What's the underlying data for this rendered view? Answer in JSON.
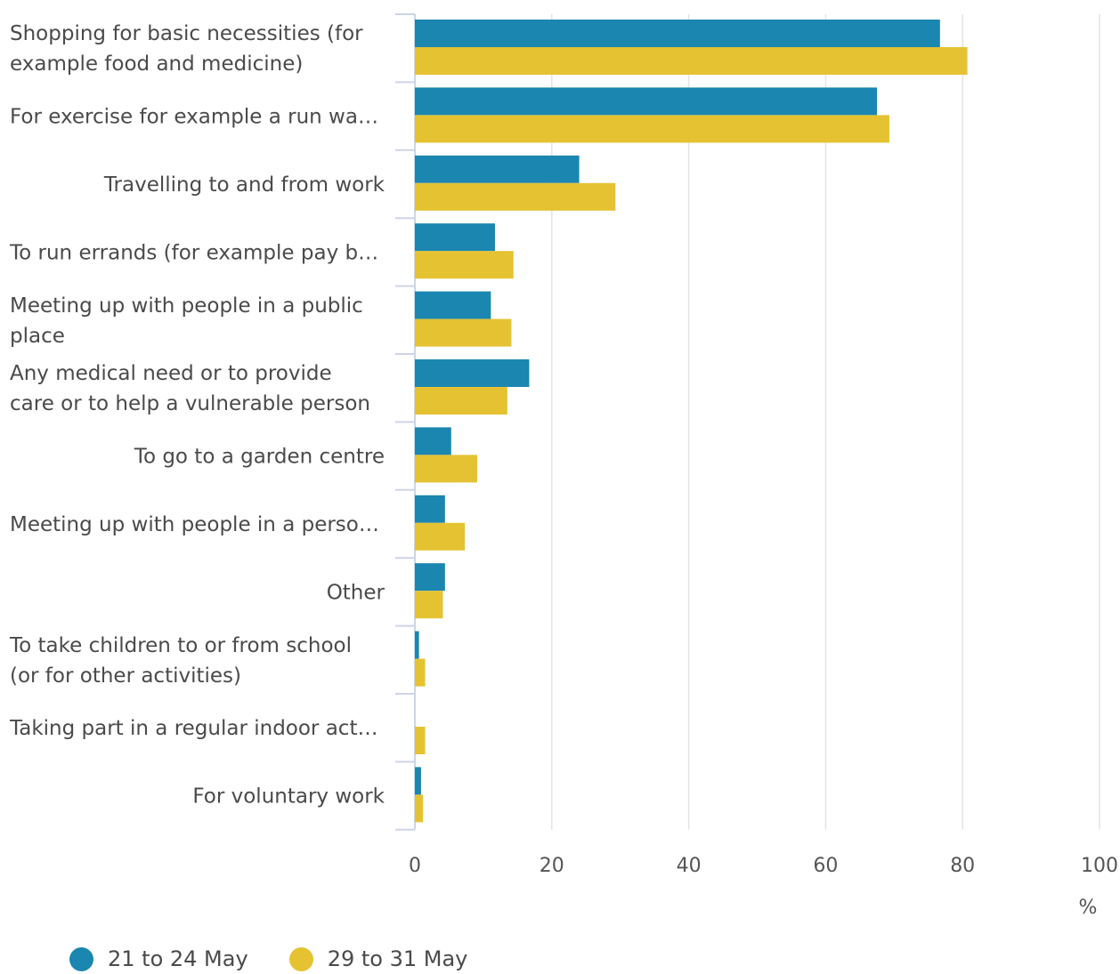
{
  "chart_data": {
    "type": "bar",
    "orientation": "horizontal",
    "categories": [
      [
        "Shopping for basic necessities (for",
        "example food and medicine)"
      ],
      [
        "For exercise for example a run wa…"
      ],
      [
        "Travelling to and from work"
      ],
      [
        "To run errands (for example pay b…"
      ],
      [
        "Meeting up with people in a public",
        "place"
      ],
      [
        "Any medical need or to provide",
        "care or to help a vulnerable person"
      ],
      [
        "To go to a garden centre"
      ],
      [
        "Meeting up with people in a perso…"
      ],
      [
        "Other"
      ],
      [
        "To take children to or from school",
        "(or for other activities)"
      ],
      [
        "Taking part in a regular indoor act…"
      ],
      [
        "For voluntary work"
      ]
    ],
    "series": [
      {
        "name": "21 to 24 May",
        "color": "#1b86b0",
        "values": [
          76.7,
          67.5,
          24.0,
          11.7,
          11.1,
          16.7,
          5.3,
          4.4,
          4.4,
          0.6,
          0.0,
          0.9
        ]
      },
      {
        "name": "29 to 31 May",
        "color": "#e5c232",
        "values": [
          80.7,
          69.3,
          29.3,
          14.4,
          14.1,
          13.5,
          9.1,
          7.3,
          4.1,
          1.5,
          1.5,
          1.2
        ]
      }
    ],
    "xlim": [
      0,
      100
    ],
    "xticks": [
      0,
      20,
      40,
      60,
      80,
      100
    ],
    "xunit": "%",
    "grid": true,
    "legend_position": "bottom-left"
  }
}
